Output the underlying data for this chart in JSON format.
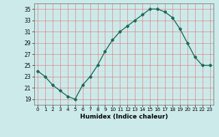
{
  "x": [
    0,
    1,
    2,
    3,
    4,
    5,
    6,
    7,
    8,
    9,
    10,
    11,
    12,
    13,
    14,
    15,
    16,
    17,
    18,
    19,
    20,
    21,
    22,
    23
  ],
  "y": [
    24.0,
    23.0,
    21.5,
    20.5,
    19.5,
    19.0,
    21.5,
    23.0,
    25.0,
    27.5,
    29.5,
    31.0,
    32.0,
    33.0,
    34.0,
    35.0,
    35.0,
    34.5,
    33.5,
    31.5,
    29.0,
    26.5,
    25.0,
    25.0
  ],
  "xlabel": "Humidex (Indice chaleur)",
  "ylim": [
    18,
    36
  ],
  "xlim": [
    -0.5,
    23.5
  ],
  "yticks": [
    19,
    21,
    23,
    25,
    27,
    29,
    31,
    33,
    35
  ],
  "xticks": [
    0,
    1,
    2,
    3,
    4,
    5,
    6,
    7,
    8,
    9,
    10,
    11,
    12,
    13,
    14,
    15,
    16,
    17,
    18,
    19,
    20,
    21,
    22,
    23
  ],
  "line_color": "#1a6b5a",
  "marker": "D",
  "marker_size": 2.0,
  "bg_color": "#cceaea",
  "grid_major_color": "#e08080",
  "grid_minor_color": "#d4d4d4"
}
